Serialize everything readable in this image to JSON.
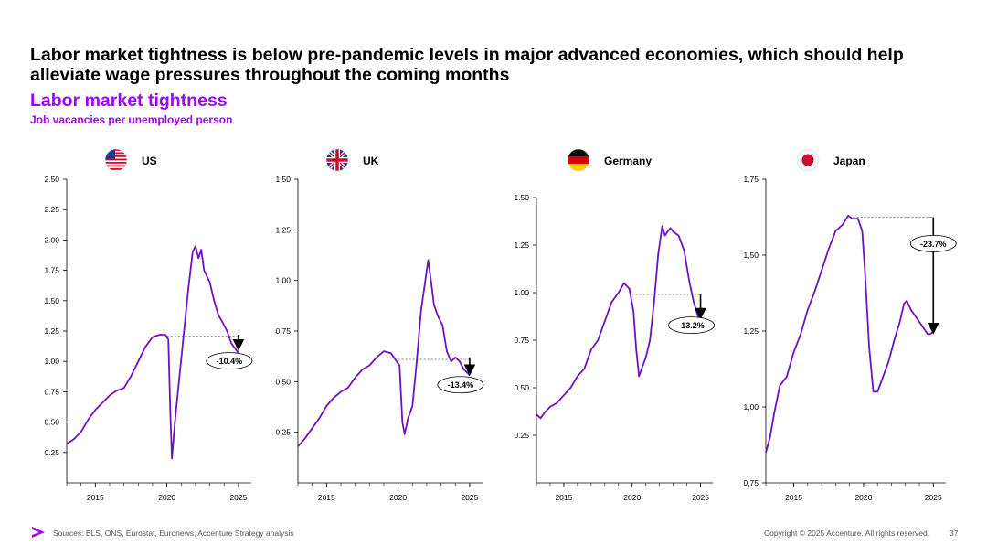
{
  "headline": "Labor market tightness is below pre-pandemic levels in major advanced economies, which should help alleviate wage pressures throughout the coming months",
  "subtitle": "Labor market tightness",
  "description": "Job vacancies per unemployed person",
  "footer": {
    "sources": "Sources: BLS, ONS, Eurostat, Euronews, Accenture Strategy analysis",
    "copyright": "Copyright © 2025 Accenture. All rights reserved.",
    "page": "37"
  },
  "colors": {
    "line": "#7010c0",
    "accent": "#a100ff",
    "axis": "#000000",
    "ref": "#555555"
  },
  "chart_data": [
    {
      "type": "line",
      "country": "US",
      "flag": "us-flag",
      "xlim": [
        2013,
        2025.9
      ],
      "ylim": [
        0,
        2.5
      ],
      "yticks": [
        0.25,
        0.5,
        0.75,
        1.0,
        1.25,
        1.5,
        1.75,
        2.0,
        2.25,
        2.5
      ],
      "ytick_labels": [
        "0.25",
        "0.50",
        "0.75",
        "1.00",
        "1.25",
        "1.50",
        "1.75",
        "2.00",
        "2.25",
        "2.50"
      ],
      "xticks": [
        2015,
        2020,
        2025
      ],
      "xtick_labels": [
        "2015",
        "2020",
        "2025"
      ],
      "x": [
        2013.0,
        2013.5,
        2014.0,
        2014.5,
        2015.0,
        2015.5,
        2016.0,
        2016.5,
        2017.0,
        2017.5,
        2018.0,
        2018.5,
        2019.0,
        2019.5,
        2019.9,
        2020.1,
        2020.25,
        2020.35,
        2020.6,
        2020.9,
        2021.2,
        2021.5,
        2021.8,
        2022.0,
        2022.2,
        2022.4,
        2022.6,
        2022.8,
        2023.0,
        2023.3,
        2023.6,
        2023.9,
        2024.2,
        2024.5,
        2024.8,
        2025.0
      ],
      "values": [
        0.32,
        0.36,
        0.42,
        0.52,
        0.6,
        0.66,
        0.72,
        0.76,
        0.78,
        0.88,
        1.0,
        1.12,
        1.2,
        1.22,
        1.22,
        1.18,
        0.55,
        0.2,
        0.55,
        0.9,
        1.25,
        1.6,
        1.9,
        1.95,
        1.85,
        1.92,
        1.75,
        1.7,
        1.65,
        1.5,
        1.38,
        1.32,
        1.25,
        1.15,
        1.1,
        1.07
      ],
      "ref_line": {
        "value": 1.21,
        "from": 2020.0,
        "to": 2025.0
      },
      "annotation": {
        "label": "-10.4%",
        "x": 2025.0,
        "y_from": 1.22,
        "y_to": 1.09
      }
    },
    {
      "type": "line",
      "country": "UK",
      "flag": "uk-flag",
      "xlim": [
        2013,
        2025.9
      ],
      "ylim": [
        0,
        1.5
      ],
      "yticks": [
        0.25,
        0.5,
        0.75,
        1.0,
        1.25,
        1.5
      ],
      "ytick_labels": [
        "0.25",
        "0.50",
        "0.75",
        "1.00",
        "1.25",
        "1.50"
      ],
      "xticks": [
        2015,
        2020,
        2025
      ],
      "xtick_labels": [
        "2015",
        "2020",
        "2025"
      ],
      "x": [
        2013.0,
        2013.5,
        2014.0,
        2014.5,
        2015.0,
        2015.5,
        2016.0,
        2016.5,
        2017.0,
        2017.5,
        2018.0,
        2018.5,
        2019.0,
        2019.5,
        2019.9,
        2020.1,
        2020.3,
        2020.45,
        2020.7,
        2021.0,
        2021.3,
        2021.6,
        2021.9,
        2022.1,
        2022.3,
        2022.5,
        2022.8,
        2023.1,
        2023.4,
        2023.7,
        2024.0,
        2024.3,
        2024.6,
        2024.9,
        2025.0
      ],
      "values": [
        0.18,
        0.22,
        0.27,
        0.32,
        0.38,
        0.42,
        0.45,
        0.47,
        0.52,
        0.56,
        0.58,
        0.62,
        0.65,
        0.64,
        0.6,
        0.58,
        0.3,
        0.24,
        0.32,
        0.38,
        0.6,
        0.85,
        1.0,
        1.1,
        1.0,
        0.88,
        0.82,
        0.78,
        0.65,
        0.6,
        0.62,
        0.6,
        0.56,
        0.54,
        0.53
      ],
      "ref_line": {
        "value": 0.61,
        "from": 2020.0,
        "to": 2025.0
      },
      "annotation": {
        "label": "-13.4%",
        "x": 2025.0,
        "y_from": 0.62,
        "y_to": 0.53
      }
    },
    {
      "type": "line",
      "country": "Germany",
      "flag": "germany-flag",
      "xlim": [
        2013,
        2025.9
      ],
      "ylim": [
        0,
        1.5
      ],
      "yticks": [
        0.25,
        0.5,
        0.75,
        1.0,
        1.25,
        1.5
      ],
      "ytick_labels": [
        "0.25",
        "0.50",
        "0.75",
        "1.00",
        "1.25",
        "1.50"
      ],
      "xticks": [
        2015,
        2020,
        2025
      ],
      "xtick_labels": [
        "2015",
        "2020",
        "2025"
      ],
      "x": [
        2013.0,
        2013.3,
        2013.6,
        2014.0,
        2014.5,
        2015.0,
        2015.5,
        2016.0,
        2016.5,
        2017.0,
        2017.5,
        2018.0,
        2018.5,
        2019.0,
        2019.4,
        2019.8,
        2020.1,
        2020.3,
        2020.5,
        2020.8,
        2021.0,
        2021.3,
        2021.6,
        2021.9,
        2022.2,
        2022.4,
        2022.6,
        2022.8,
        2023.0,
        2023.4,
        2023.8,
        2024.2,
        2024.5,
        2024.8,
        2025.0
      ],
      "values": [
        0.36,
        0.34,
        0.37,
        0.4,
        0.42,
        0.46,
        0.5,
        0.56,
        0.6,
        0.7,
        0.75,
        0.85,
        0.95,
        1.0,
        1.05,
        1.02,
        0.9,
        0.7,
        0.56,
        0.62,
        0.66,
        0.75,
        0.95,
        1.2,
        1.35,
        1.3,
        1.32,
        1.34,
        1.32,
        1.3,
        1.22,
        1.05,
        0.95,
        0.88,
        0.85
      ],
      "ref_line": {
        "value": 0.99,
        "from": 2020.0,
        "to": 2025.0
      },
      "annotation": {
        "label": "-13.2%",
        "x": 2025.0,
        "y_from": 0.99,
        "y_to": 0.86
      }
    },
    {
      "type": "line",
      "country": "Japan",
      "flag": "japan-flag",
      "xlim": [
        2013,
        2025.9
      ],
      "ylim": [
        0.75,
        1.75
      ],
      "yticks": [
        0.75,
        1.0,
        1.25,
        1.5,
        1.75
      ],
      "ytick_labels": [
        "0,75",
        "1,00",
        "1,25",
        "1,50",
        "1,75"
      ],
      "xticks": [
        2015,
        2020,
        2025
      ],
      "xtick_labels": [
        "2015",
        "2020",
        "2025"
      ],
      "x": [
        2013.0,
        2013.3,
        2013.6,
        2014.0,
        2014.5,
        2015.0,
        2015.5,
        2016.0,
        2016.5,
        2017.0,
        2017.5,
        2018.0,
        2018.5,
        2018.9,
        2019.2,
        2019.6,
        2019.9,
        2020.1,
        2020.4,
        2020.7,
        2021.0,
        2021.4,
        2021.8,
        2022.2,
        2022.6,
        2022.9,
        2023.1,
        2023.4,
        2023.7,
        2024.0,
        2024.3,
        2024.6,
        2024.8,
        2025.0
      ],
      "values": [
        0.85,
        0.9,
        0.98,
        1.07,
        1.1,
        1.18,
        1.24,
        1.32,
        1.38,
        1.45,
        1.52,
        1.58,
        1.6,
        1.63,
        1.62,
        1.62,
        1.58,
        1.45,
        1.2,
        1.05,
        1.05,
        1.1,
        1.15,
        1.22,
        1.28,
        1.34,
        1.35,
        1.32,
        1.3,
        1.28,
        1.26,
        1.24,
        1.24,
        1.25
      ],
      "ref_line": {
        "value": 1.625,
        "from": 2019.0,
        "to": 2025.0
      },
      "annotation": {
        "label": "-23.7%",
        "x": 2025.0,
        "y_from": 1.625,
        "y_to": 1.24
      }
    }
  ]
}
